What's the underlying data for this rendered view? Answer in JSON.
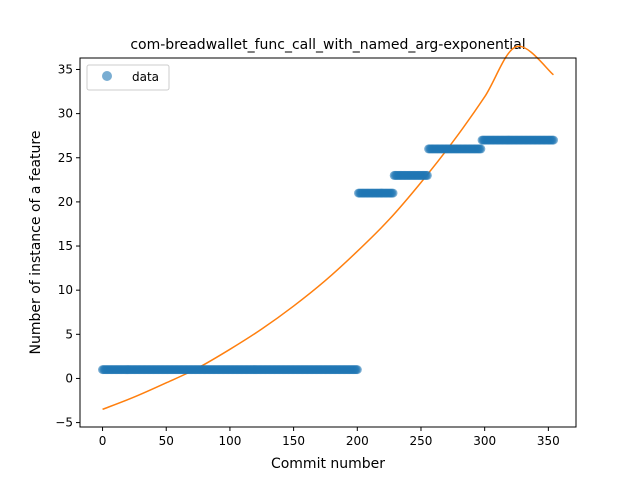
{
  "chart_data": {
    "type": "scatter",
    "title": "com-breadwallet_func_call_with_named_arg-exponential",
    "xlabel": "Commit number",
    "ylabel": "Number of instance of a feature",
    "xlim": [
      -17.7,
      371.7
    ],
    "ylim": [
      -5.5,
      36.3
    ],
    "xticks": [
      0,
      50,
      100,
      150,
      200,
      250,
      300,
      350
    ],
    "yticks": [
      -5,
      0,
      5,
      10,
      15,
      20,
      25,
      30,
      35
    ],
    "grid": false,
    "legend": {
      "position": "top-left",
      "entries": [
        "data"
      ]
    },
    "colors": {
      "data": "#1f77b4",
      "fit": "#ff7f0e"
    },
    "series": [
      {
        "name": "data",
        "kind": "scatter",
        "segments": [
          {
            "x_start": 0,
            "x_end": 200,
            "y": 1
          },
          {
            "x_start": 201,
            "x_end": 228,
            "y": 21
          },
          {
            "x_start": 229,
            "x_end": 255,
            "y": 23
          },
          {
            "x_start": 256,
            "x_end": 297,
            "y": 26
          },
          {
            "x_start": 298,
            "x_end": 354,
            "y": 27
          }
        ]
      },
      {
        "kind": "line",
        "x": [
          0,
          25,
          50,
          75,
          100,
          125,
          150,
          175,
          200,
          225,
          250,
          275,
          300,
          325,
          354
        ],
        "y": [
          -3.5,
          -2.1,
          -0.5,
          1.2,
          3.3,
          5.6,
          8.2,
          11.1,
          14.4,
          18.0,
          22.2,
          26.8,
          31.9,
          37.6,
          34.4
        ]
      }
    ]
  }
}
